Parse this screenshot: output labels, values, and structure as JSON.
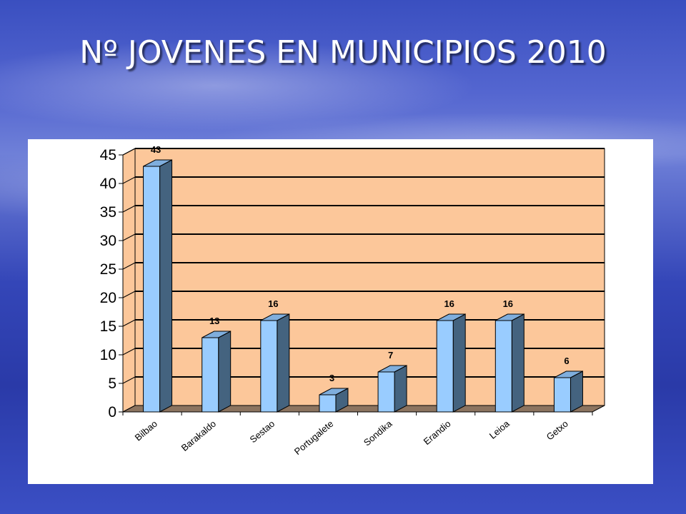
{
  "slide": {
    "title": "Nº JOVENES EN MUNICIPIOS 2010"
  },
  "colors": {
    "plot_background": "#FCC79A",
    "bar_front": "#99CCFF",
    "bar_side": "#44637F",
    "floor": "#8C7460",
    "gridline": "#000000"
  },
  "chart_data": {
    "type": "bar",
    "style": "3d-column",
    "categories": [
      "Bilbao",
      "Barakaldo",
      "Sestao",
      "Portugalete",
      "Sondika",
      "Erandio",
      "Leioa",
      "Getxo"
    ],
    "values": [
      43,
      13,
      16,
      3,
      7,
      16,
      16,
      6
    ],
    "data_labels": [
      "43",
      "13",
      "16",
      "3",
      "7",
      "16",
      "16",
      "6"
    ],
    "title": "Nº JOVENES EN MUNICIPIOS 2010",
    "xlabel": "",
    "ylabel": "",
    "ylim": [
      0,
      45
    ],
    "yticks": [
      0,
      5,
      10,
      15,
      20,
      25,
      30,
      35,
      40,
      45
    ],
    "grid": true,
    "legend": "none"
  }
}
